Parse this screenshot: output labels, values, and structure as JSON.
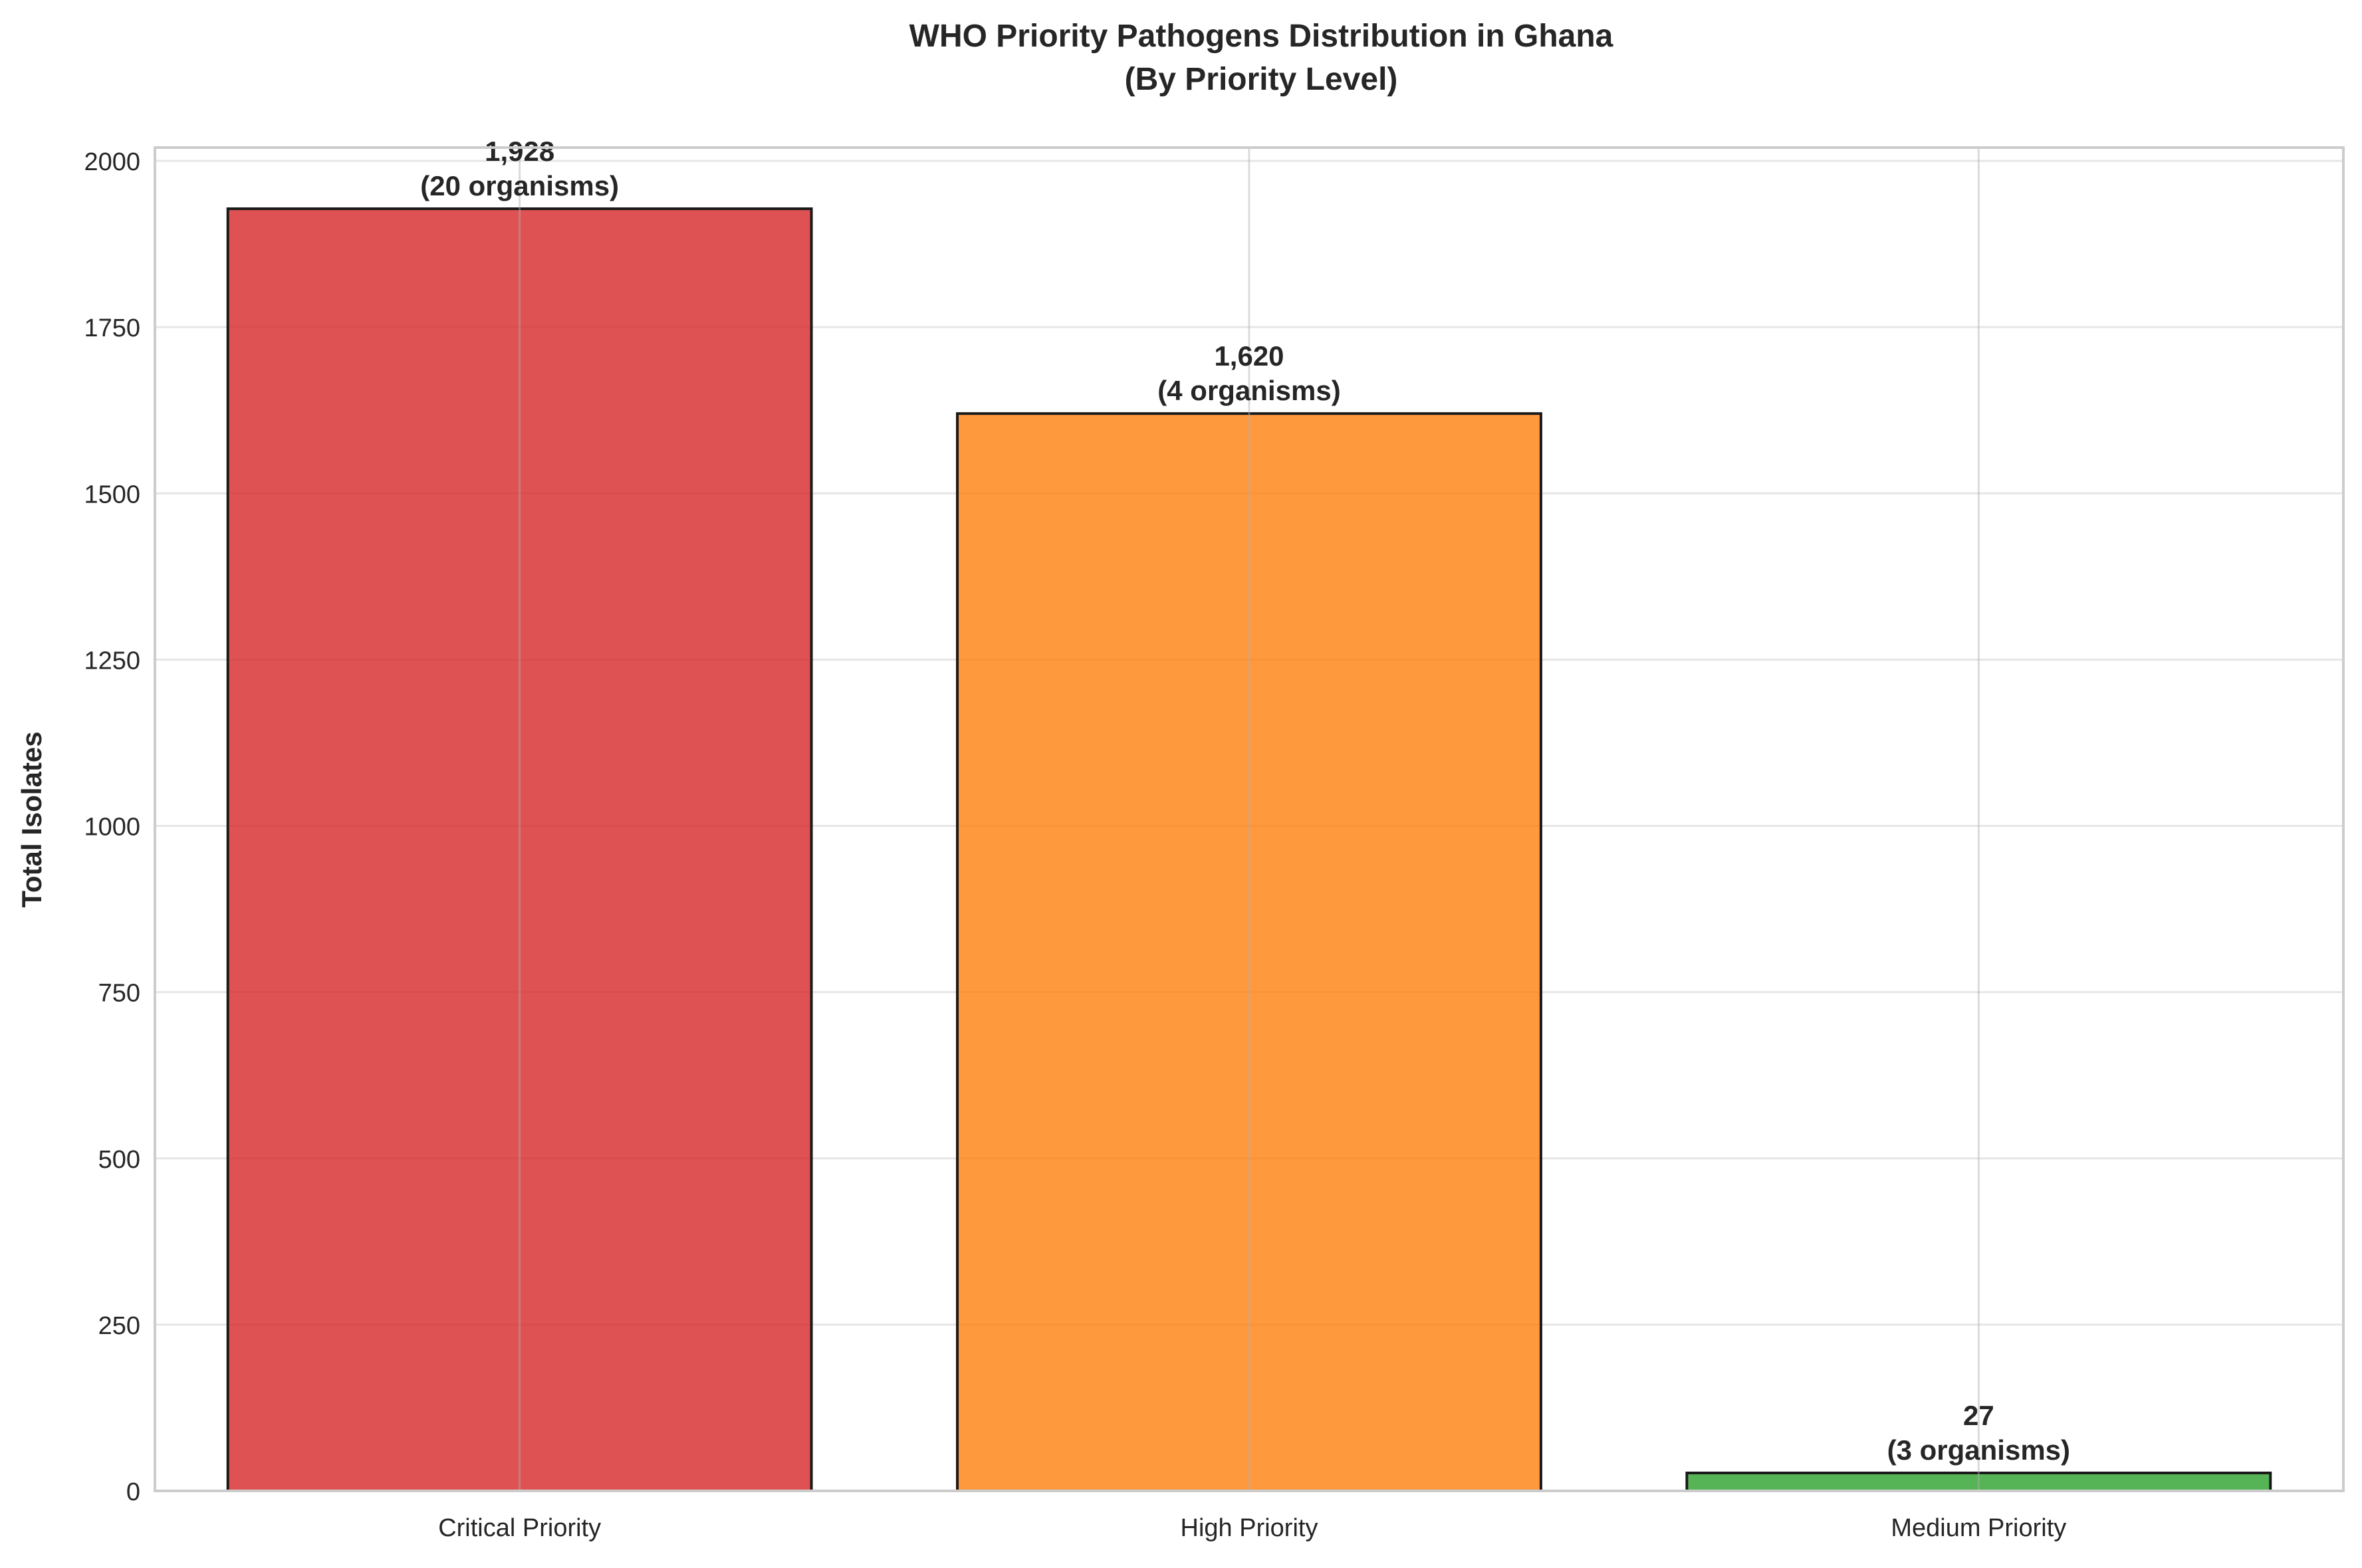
{
  "chart_data": {
    "type": "bar",
    "title_line1": "WHO Priority Pathogens Distribution in Ghana",
    "title_line2": "(By Priority Level)",
    "xlabel": "",
    "ylabel": "Total Isolates",
    "categories": [
      "Critical Priority",
      "High Priority",
      "Medium Priority"
    ],
    "values": [
      1928,
      1620,
      27
    ],
    "value_labels": [
      "1,928",
      "1,620",
      "27"
    ],
    "organism_labels": [
      "(20 organisms)",
      "(4 organisms)",
      "(3 organisms)"
    ],
    "colors": [
      "#d62728",
      "#ff7f0e",
      "#2ca02c"
    ],
    "ylim": [
      0,
      2020
    ],
    "yticks": [
      0,
      250,
      500,
      750,
      1000,
      1250,
      1500,
      1750,
      2000
    ],
    "grid": true,
    "legend": "none"
  }
}
